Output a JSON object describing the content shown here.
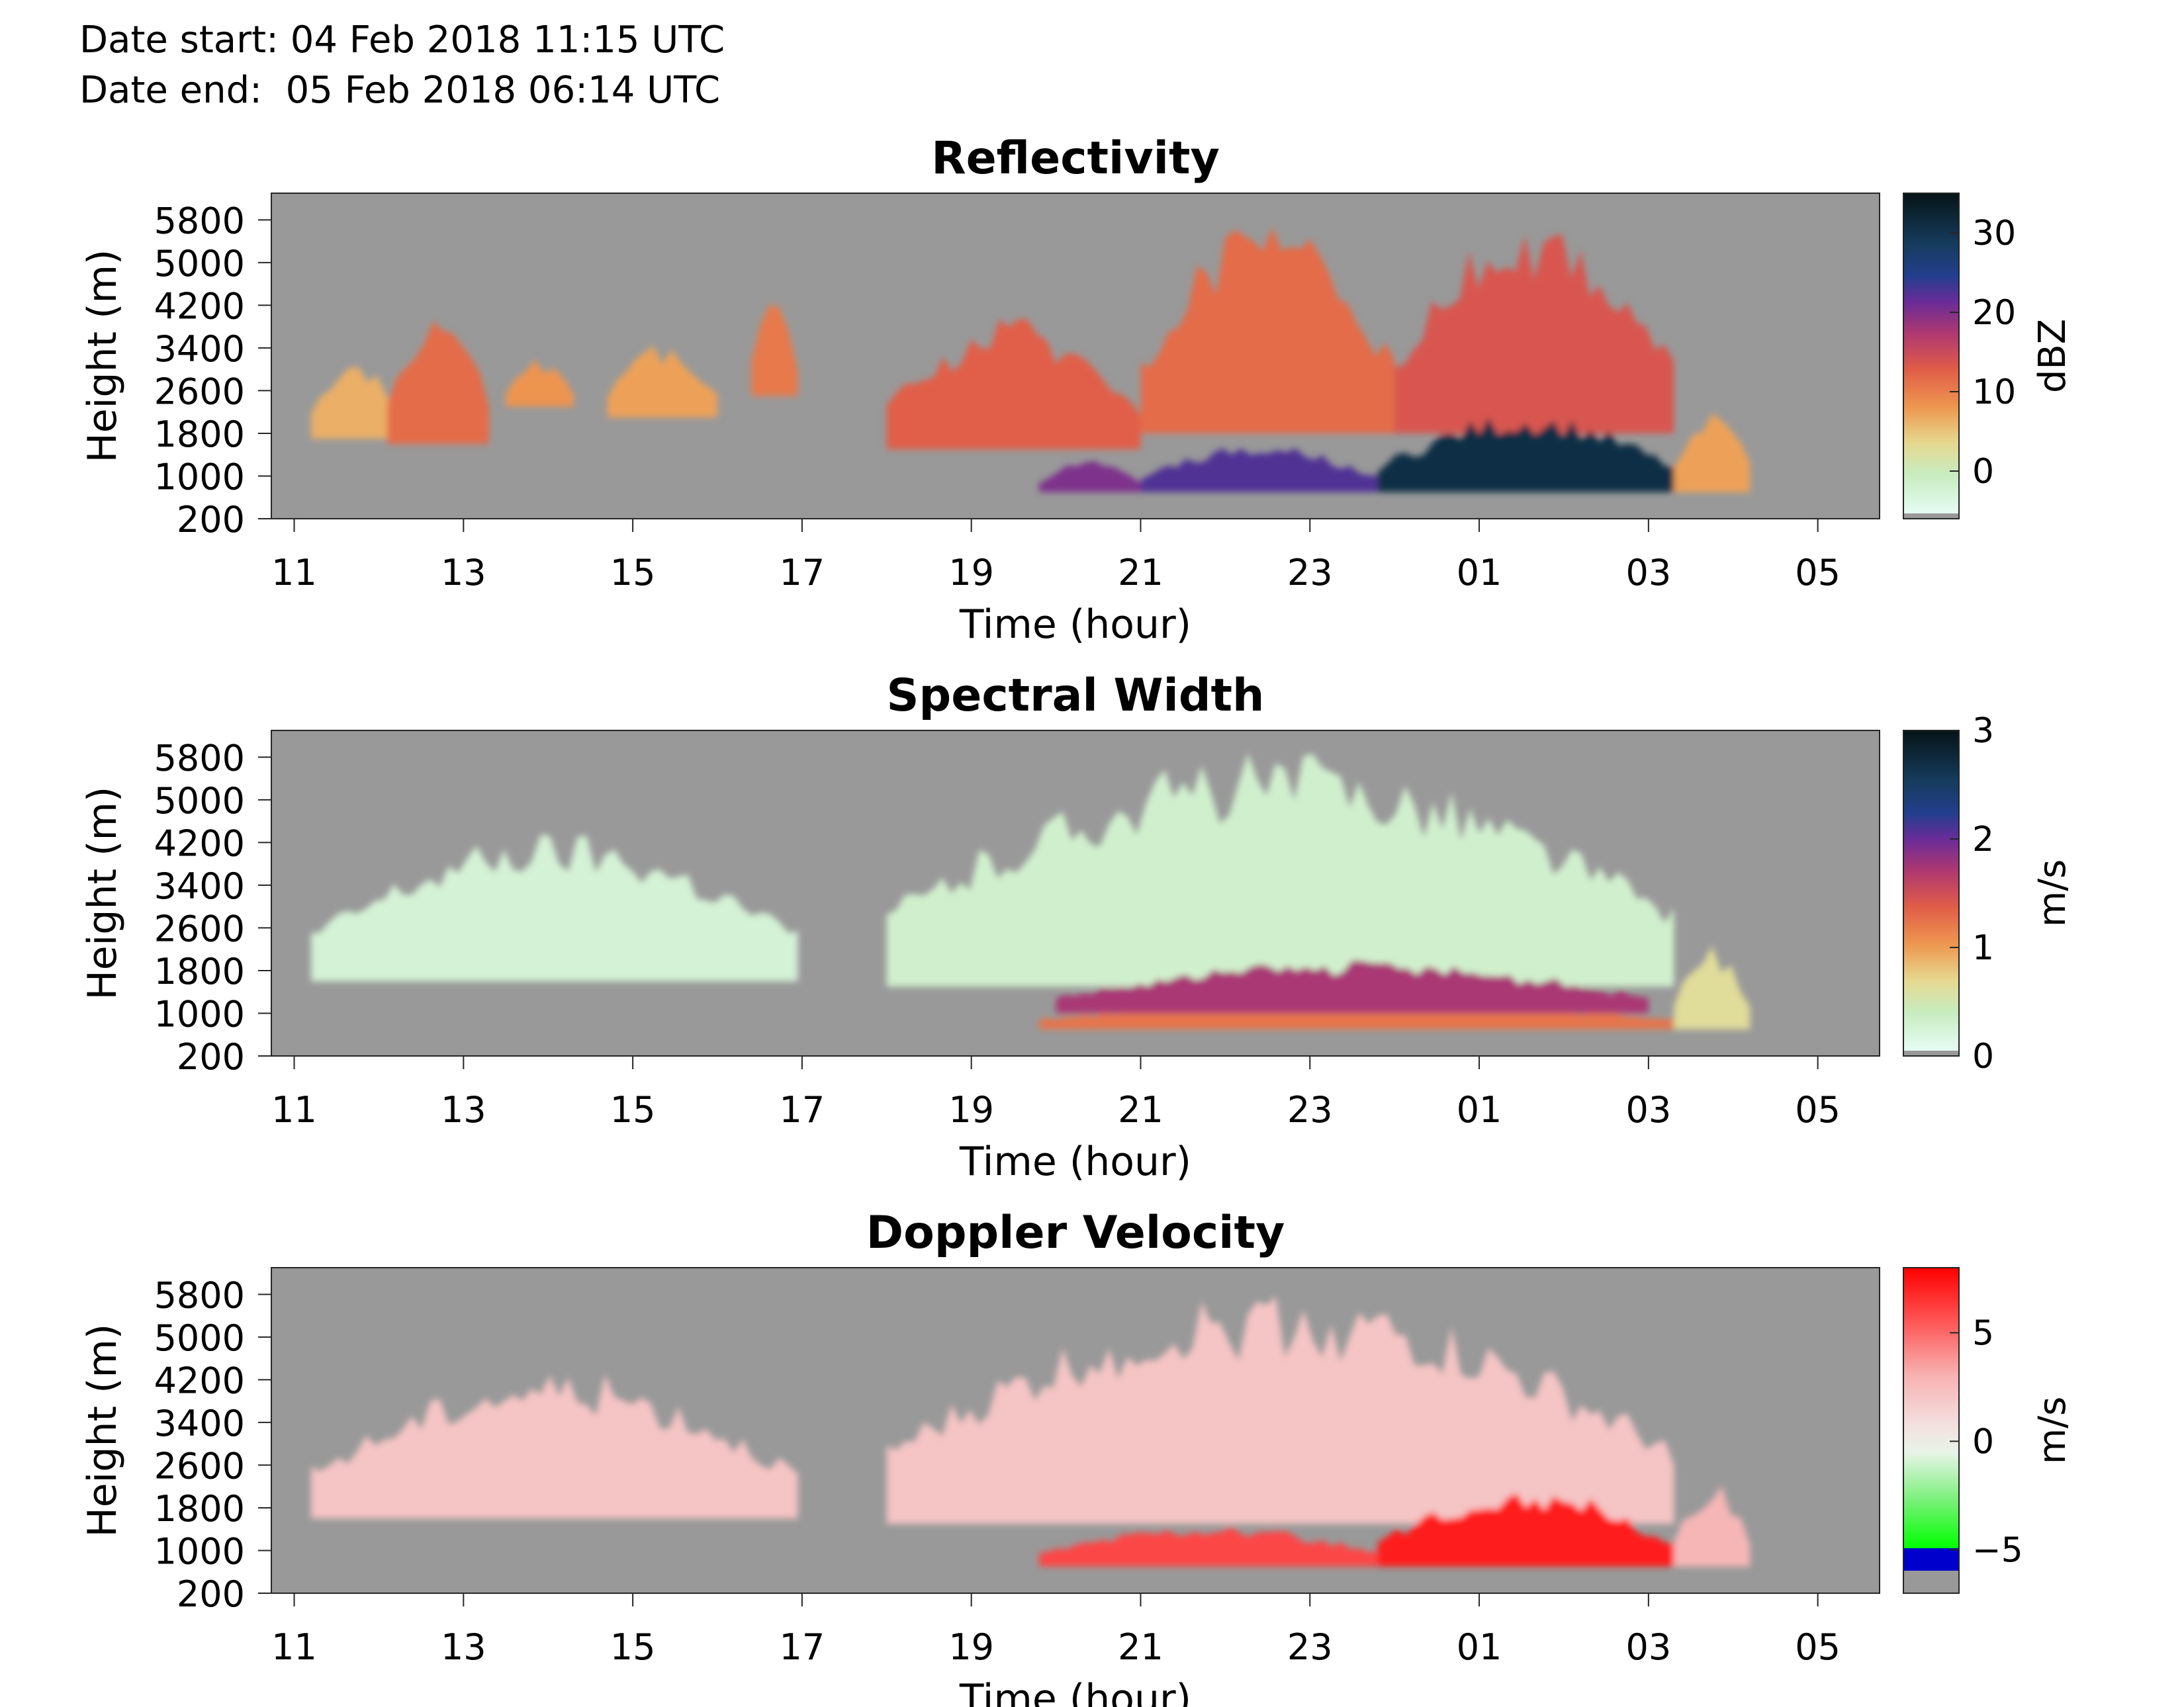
{
  "header": {
    "date_start": "Date start: 04 Feb 2018 11:15 UTC",
    "date_end": "Date end:  05 Feb 2018 06:14 UTC"
  },
  "panels": [
    {
      "title": "Reflectivity",
      "xlabel": "Time (hour)",
      "ylabel": "Height (m)",
      "xticks": [
        "11",
        "13",
        "15",
        "17",
        "19",
        "21",
        "23",
        "01",
        "03",
        "05"
      ],
      "yticks": [
        "5800",
        "5000",
        "4200",
        "3400",
        "2600",
        "1800",
        "1000",
        "200"
      ],
      "colorbar": {
        "label": "dBZ",
        "ticks": [
          "30",
          "20",
          "10",
          "0"
        ]
      }
    },
    {
      "title": "Spectral Width",
      "xlabel": "Time (hour)",
      "ylabel": "Height (m)",
      "xticks": [
        "11",
        "13",
        "15",
        "17",
        "19",
        "21",
        "23",
        "01",
        "03",
        "05"
      ],
      "yticks": [
        "5800",
        "5000",
        "4200",
        "3400",
        "2600",
        "1800",
        "1000",
        "200"
      ],
      "colorbar": {
        "label": "m/s",
        "ticks": [
          "3",
          "2",
          "1",
          "0"
        ]
      }
    },
    {
      "title": "Doppler Velocity",
      "xlabel": "Time (hour)",
      "ylabel": "Height (m)",
      "xticks": [
        "11",
        "13",
        "15",
        "17",
        "19",
        "21",
        "23",
        "01",
        "03",
        "05"
      ],
      "yticks": [
        "5800",
        "5000",
        "4200",
        "3400",
        "2600",
        "1800",
        "1000",
        "200"
      ],
      "colorbar": {
        "label": "m/s",
        "ticks": [
          "5",
          "0",
          "−5"
        ]
      }
    }
  ],
  "chart_data": [
    {
      "type": "heatmap",
      "title": "Reflectivity",
      "xlabel": "Time (hour)",
      "ylabel": "Height (m)",
      "x_range_hours": [
        10.73,
        29.73
      ],
      "ylim": [
        200,
        6300
      ],
      "colorbar_range": [
        -6,
        35
      ],
      "colorbar_unit": "dBZ",
      "background_color": "#999999",
      "colormap": [
        "#e6fcf4",
        "#c8ecc0",
        "#e6d890",
        "#ee9850",
        "#e05c48",
        "#b03870",
        "#6a2c98",
        "#243e8e",
        "#163c5e",
        "#061416"
      ],
      "echo_regions": [
        {
          "t_start": 11.2,
          "t_end": 12.2,
          "h_bottom": 1700,
          "h_top": 3300,
          "value": 6
        },
        {
          "t_start": 12.1,
          "t_end": 13.3,
          "h_bottom": 1600,
          "h_top": 4200,
          "value": 11
        },
        {
          "t_start": 13.5,
          "t_end": 14.3,
          "h_bottom": 2300,
          "h_top": 3200,
          "value": 8
        },
        {
          "t_start": 14.7,
          "t_end": 16.0,
          "h_bottom": 2100,
          "h_top": 3500,
          "value": 7
        },
        {
          "t_start": 16.4,
          "t_end": 16.95,
          "h_bottom": 2500,
          "h_top": 4400,
          "value": 10
        },
        {
          "t_start": 18.0,
          "t_end": 21.0,
          "h_bottom": 1500,
          "h_top": 4000,
          "value": 12
        },
        {
          "t_start": 21.0,
          "t_end": 24.0,
          "h_bottom": 1800,
          "h_top": 5900,
          "value": 11
        },
        {
          "t_start": 24.0,
          "t_end": 27.3,
          "h_bottom": 1800,
          "h_top": 5900,
          "value": 13
        },
        {
          "t_start": 27.3,
          "t_end": 28.2,
          "h_bottom": 700,
          "h_top": 2300,
          "value": 7
        },
        {
          "t_start": 19.8,
          "t_end": 21.0,
          "h_bottom": 700,
          "h_top": 1300,
          "value": 20
        },
        {
          "t_start": 21.0,
          "t_end": 23.8,
          "h_bottom": 700,
          "h_top": 1600,
          "value": 23
        },
        {
          "t_start": 23.8,
          "t_end": 27.3,
          "h_bottom": 700,
          "h_top": 2200,
          "value": 32
        }
      ]
    },
    {
      "type": "heatmap",
      "title": "Spectral Width",
      "xlabel": "Time (hour)",
      "ylabel": "Height (m)",
      "x_range_hours": [
        10.73,
        29.73
      ],
      "ylim": [
        200,
        6300
      ],
      "colorbar_range": [
        0,
        3
      ],
      "colorbar_unit": "m/s",
      "background_color": "#999999",
      "colormap": [
        "#e6fcf4",
        "#c8ecc0",
        "#e6d890",
        "#ee9850",
        "#e05c48",
        "#b03870",
        "#6a2c98",
        "#243e8e",
        "#163c5e",
        "#061416"
      ],
      "echo_regions": [
        {
          "t_start": 11.2,
          "t_end": 16.95,
          "h_bottom": 1600,
          "h_top": 4400,
          "value": 0.2
        },
        {
          "t_start": 18.0,
          "t_end": 27.3,
          "h_bottom": 1500,
          "h_top": 5900,
          "value": 0.25
        },
        {
          "t_start": 19.8,
          "t_end": 27.3,
          "h_bottom": 700,
          "h_top": 1300,
          "value": 1.2
        },
        {
          "t_start": 20.0,
          "t_end": 27.0,
          "h_bottom": 1000,
          "h_top": 2000,
          "value": 1.7
        },
        {
          "t_start": 27.3,
          "t_end": 28.2,
          "h_bottom": 700,
          "h_top": 2300,
          "value": 0.6
        }
      ]
    },
    {
      "type": "heatmap",
      "title": "Doppler Velocity",
      "xlabel": "Time (hour)",
      "ylabel": "Height (m)",
      "x_range_hours": [
        10.73,
        29.73
      ],
      "ylim": [
        200,
        6300
      ],
      "colorbar_range": [
        -7,
        8
      ],
      "colorbar_unit": "m/s",
      "background_color": "#999999",
      "colormap": [
        "#999999",
        "#0000cc",
        "#00ff00",
        "#e8f4e8",
        "#f4e0e0",
        "#ff6060",
        "#ff0000"
      ],
      "echo_regions": [
        {
          "t_start": 11.2,
          "t_end": 16.95,
          "h_bottom": 1600,
          "h_top": 4400,
          "value": 1.0
        },
        {
          "t_start": 18.0,
          "t_end": 27.3,
          "h_bottom": 1500,
          "h_top": 5900,
          "value": 1.0
        },
        {
          "t_start": 19.8,
          "t_end": 23.8,
          "h_bottom": 700,
          "h_top": 1500,
          "value": 5.5
        },
        {
          "t_start": 23.8,
          "t_end": 27.3,
          "h_bottom": 700,
          "h_top": 2200,
          "value": 7.0
        },
        {
          "t_start": 27.3,
          "t_end": 28.2,
          "h_bottom": 700,
          "h_top": 2300,
          "value": 1.5
        }
      ]
    }
  ]
}
